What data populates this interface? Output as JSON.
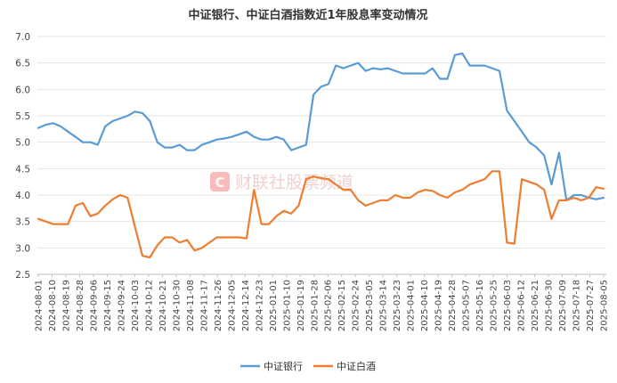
{
  "chart_data": {
    "type": "line",
    "title": "中证银行、中证白酒指数近1年股息率变动情况",
    "xlabel": "",
    "ylabel": "",
    "ylim": [
      2.5,
      7.0
    ],
    "yticks": [
      "7.0",
      "6.5",
      "6.0",
      "5.5",
      "5.0",
      "4.5",
      "4.0",
      "3.5",
      "3.0",
      "2.5"
    ],
    "grid": true,
    "legend_position": "bottom-center",
    "x_labels": [
      "2024-08-01",
      "2024-08-10",
      "2024-08-19",
      "2024-08-28",
      "2024-09-06",
      "2024-09-15",
      "2024-09-24",
      "2024-10-03",
      "2024-10-12",
      "2024-10-21",
      "2024-10-30",
      "2024-11-08",
      "2024-11-17",
      "2024-11-26",
      "2024-12-05",
      "2024-12-14",
      "2024-12-23",
      "2025-01-01",
      "2025-01-10",
      "2025-01-19",
      "2025-01-28",
      "2025-02-06",
      "2025-02-15",
      "2025-02-24",
      "2025-03-05",
      "2025-03-14",
      "2025-03-23",
      "2025-04-01",
      "2025-04-10",
      "2025-04-19",
      "2025-04-28",
      "2025-05-07",
      "2025-05-16",
      "2025-05-25",
      "2025-06-03",
      "2025-06-12",
      "2025-06-21",
      "2025-06-30",
      "2025-07-09",
      "2025-07-18",
      "2025-07-27",
      "2025-08-05"
    ],
    "series": [
      {
        "name": "中证银行",
        "color": "#5b9bd5",
        "values": [
          5.27,
          5.33,
          5.36,
          5.3,
          5.2,
          5.1,
          5.0,
          5.0,
          4.95,
          5.3,
          5.4,
          5.45,
          5.5,
          5.58,
          5.55,
          5.4,
          5.0,
          4.9,
          4.9,
          4.95,
          4.85,
          4.85,
          4.95,
          5.0,
          5.05,
          5.07,
          5.1,
          5.15,
          5.2,
          5.1,
          5.05,
          5.05,
          5.1,
          5.05,
          4.85,
          4.9,
          4.95,
          5.9,
          6.05,
          6.1,
          6.45,
          6.4,
          6.45,
          6.5,
          6.35,
          6.4,
          6.38,
          6.4,
          6.35,
          6.3,
          6.3,
          6.3,
          6.3,
          6.4,
          6.2,
          6.2,
          6.65,
          6.68,
          6.45,
          6.45,
          6.45,
          6.4,
          6.35,
          5.6,
          5.4,
          5.2,
          5.0,
          4.9,
          4.75,
          4.2,
          4.8,
          3.9,
          4.0,
          4.0,
          3.95,
          3.92,
          3.95
        ]
      },
      {
        "name": "中证白酒",
        "color": "#ed7d31",
        "values": [
          3.55,
          3.5,
          3.45,
          3.45,
          3.45,
          3.8,
          3.85,
          3.6,
          3.65,
          3.8,
          3.92,
          4.0,
          3.95,
          3.4,
          2.85,
          2.82,
          3.05,
          3.2,
          3.2,
          3.1,
          3.15,
          2.95,
          3.0,
          3.1,
          3.2,
          3.2,
          3.2,
          3.2,
          3.18,
          4.1,
          3.45,
          3.45,
          3.6,
          3.7,
          3.65,
          3.8,
          4.3,
          4.35,
          4.32,
          4.3,
          4.2,
          4.1,
          4.1,
          3.9,
          3.8,
          3.85,
          3.9,
          3.9,
          4.0,
          3.95,
          3.95,
          4.05,
          4.1,
          4.08,
          4.0,
          3.95,
          4.05,
          4.1,
          4.2,
          4.25,
          4.3,
          4.45,
          4.45,
          3.1,
          3.08,
          4.3,
          4.25,
          4.2,
          4.1,
          3.55,
          3.9,
          3.9,
          3.95,
          3.9,
          3.95,
          4.15,
          4.12
        ]
      }
    ]
  },
  "watermark": {
    "icon_name": "cailian-logo-icon",
    "text": "财联社股票频道"
  }
}
